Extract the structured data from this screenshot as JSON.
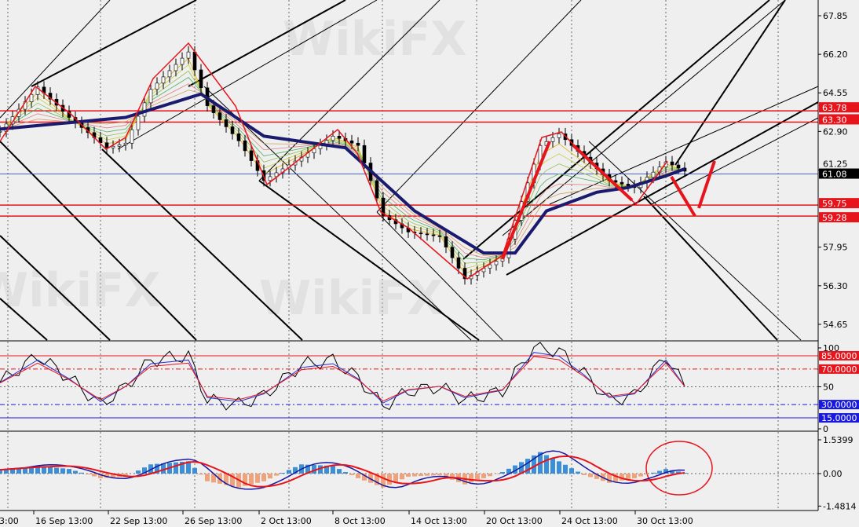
{
  "watermark": "WikiFX",
  "chart_data": [
    {
      "type": "line",
      "panel": "price",
      "ylim": [
        53.8,
        68.5
      ],
      "y_ticks": [
        "67.85",
        "66.20",
        "64.55",
        "62.90",
        "61.25",
        "57.95",
        "56.30",
        "54.65"
      ],
      "price_labels": [
        {
          "text": "63.78",
          "value": 63.78,
          "color": "#e8141c"
        },
        {
          "text": "63.30",
          "value": 63.3,
          "color": "#e8141c"
        },
        {
          "text": "61.08",
          "value": 61.08,
          "color": "#000000"
        },
        {
          "text": "59.75",
          "value": 59.75,
          "color": "#e8141c"
        },
        {
          "text": "59.28",
          "value": 59.28,
          "color": "#e8141c"
        }
      ],
      "horizontal_lines": [
        {
          "value": 63.78,
          "color": "#e8141c"
        },
        {
          "value": 63.3,
          "color": "#e8141c"
        },
        {
          "value": 59.75,
          "color": "#e8141c"
        },
        {
          "value": 59.28,
          "color": "#e8141c"
        },
        {
          "value": 61.08,
          "color": "#3050d0"
        }
      ],
      "price_series": [
        [
          0,
          62.9
        ],
        [
          6,
          64.8
        ],
        [
          11,
          63.5
        ],
        [
          17,
          62.2
        ],
        [
          20,
          62.4
        ],
        [
          24,
          64.7
        ],
        [
          30,
          66.3
        ],
        [
          33,
          64.0
        ],
        [
          38,
          62.5
        ],
        [
          42,
          60.8
        ],
        [
          48,
          61.8
        ],
        [
          53,
          62.7
        ],
        [
          57,
          62.3
        ],
        [
          61,
          59.3
        ],
        [
          65,
          58.6
        ],
        [
          70,
          58.4
        ],
        [
          74,
          56.6
        ],
        [
          80,
          57.5
        ],
        [
          86,
          62.3
        ],
        [
          89,
          62.8
        ],
        [
          93,
          61.8
        ],
        [
          97,
          60.8
        ],
        [
          101,
          60.5
        ],
        [
          106,
          61.6
        ],
        [
          109,
          61.2
        ]
      ],
      "ma_series": [
        [
          0,
          63.0
        ],
        [
          12,
          63.3
        ],
        [
          20,
          63.5
        ],
        [
          32,
          64.5
        ],
        [
          42,
          62.7
        ],
        [
          55,
          62.2
        ],
        [
          66,
          59.5
        ],
        [
          77,
          57.7
        ],
        [
          82,
          57.7
        ],
        [
          87,
          59.5
        ],
        [
          95,
          60.3
        ],
        [
          100,
          60.5
        ],
        [
          106,
          61.0
        ],
        [
          109,
          61.3
        ]
      ],
      "x_labels": [
        "3:00",
        "16 Sep 13:00",
        "22 Sep 13:00",
        "26 Sep 13:00",
        "2 Oct 13:00",
        "8 Oct 13:00",
        "14 Oct 13:00",
        "20 Oct 13:00",
        "24 Oct 13:00",
        "30 Oct 13:00"
      ]
    },
    {
      "type": "line",
      "panel": "oscillator",
      "ylim": [
        0,
        100
      ],
      "y_ticks": [
        "100",
        "50",
        "0"
      ],
      "levels": [
        {
          "text": "85.0000",
          "value": 85,
          "color": "#e8141c"
        },
        {
          "text": "70.0000",
          "value": 70,
          "color": "#e8141c"
        },
        {
          "text": "30.0000",
          "value": 30,
          "color": "#1818e0"
        },
        {
          "text": "15.0000",
          "value": 15,
          "color": "#1818e0"
        }
      ],
      "series": [
        [
          0,
          55
        ],
        [
          6,
          85
        ],
        [
          11,
          60
        ],
        [
          16,
          30
        ],
        [
          20,
          50
        ],
        [
          24,
          80
        ],
        [
          30,
          85
        ],
        [
          33,
          35
        ],
        [
          38,
          30
        ],
        [
          42,
          40
        ],
        [
          48,
          75
        ],
        [
          53,
          80
        ],
        [
          57,
          60
        ],
        [
          61,
          28
        ],
        [
          65,
          45
        ],
        [
          70,
          50
        ],
        [
          74,
          35
        ],
        [
          80,
          45
        ],
        [
          85,
          95
        ],
        [
          89,
          90
        ],
        [
          93,
          65
        ],
        [
          97,
          35
        ],
        [
          101,
          40
        ],
        [
          106,
          85
        ],
        [
          109,
          50
        ]
      ]
    },
    {
      "type": "bar",
      "panel": "macd",
      "ylim": [
        -1.4814,
        1.5399
      ],
      "y_ticks": [
        "1.5399",
        "0.00",
        "-1.4814"
      ],
      "histogram": [
        [
          0,
          0.2
        ],
        [
          6,
          0.5
        ],
        [
          11,
          0.3
        ],
        [
          16,
          -0.3
        ],
        [
          20,
          -0.2
        ],
        [
          24,
          0.6
        ],
        [
          30,
          0.8
        ],
        [
          33,
          -0.5
        ],
        [
          38,
          -0.9
        ],
        [
          42,
          -0.5
        ],
        [
          48,
          0.6
        ],
        [
          53,
          0.5
        ],
        [
          57,
          -0.3
        ],
        [
          61,
          -0.9
        ],
        [
          65,
          -0.2
        ],
        [
          70,
          -0.1
        ],
        [
          74,
          -0.7
        ],
        [
          80,
          0.1
        ],
        [
          86,
          1.4
        ],
        [
          89,
          0.8
        ],
        [
          93,
          -0.1
        ],
        [
          97,
          -0.6
        ],
        [
          101,
          -0.3
        ],
        [
          106,
          0.3
        ],
        [
          109,
          0.05
        ]
      ]
    }
  ]
}
